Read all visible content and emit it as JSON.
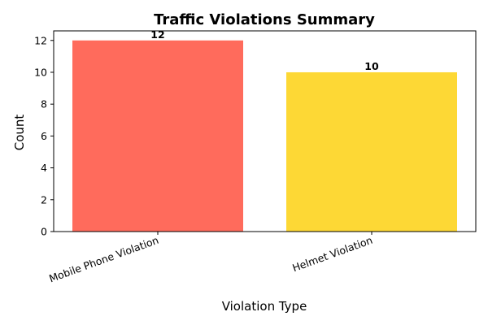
{
  "chart_data": {
    "type": "bar",
    "title": "Traffic Violations Summary",
    "xlabel": "Violation Type",
    "ylabel": "Count",
    "categories": [
      "Mobile Phone Violation",
      "Helmet Violation"
    ],
    "values": [
      12,
      10
    ],
    "data_labels": [
      "12",
      "10"
    ],
    "colors": [
      "#ff6b5c",
      "#fdd835"
    ],
    "yticks": [
      0,
      2,
      4,
      6,
      8,
      10,
      12
    ],
    "ytick_labels": [
      "0",
      "2",
      "4",
      "6",
      "8",
      "10",
      "12"
    ],
    "ylim": [
      0,
      12.6
    ],
    "grid": false,
    "legend": "none"
  }
}
